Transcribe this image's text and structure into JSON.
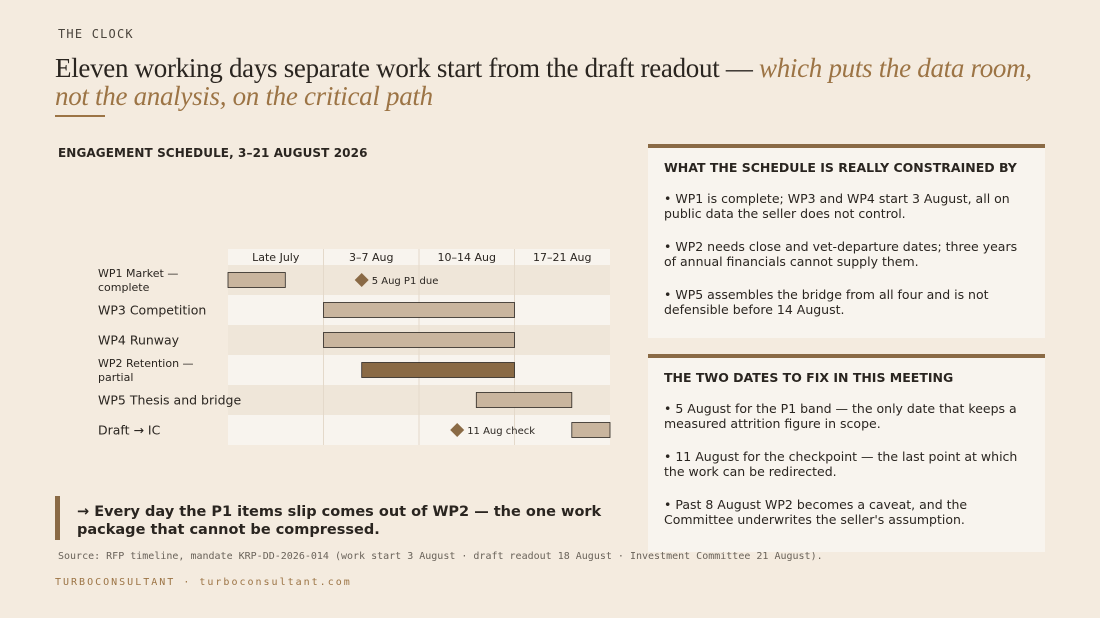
{
  "kicker": "THE CLOCK",
  "headline": {
    "main": "Eleven working days separate work start from the draft readout — ",
    "accent": "which puts the data room, not the analysis, on the critical path"
  },
  "chart_data": {
    "type": "gantt",
    "title": "ENGAGEMENT SCHEDULE, 3–21 AUGUST 2026",
    "columns": [
      "Late July",
      "3–7 Aug",
      "10–14 Aug",
      "17–21 Aug"
    ],
    "x_range": [
      0,
      4
    ],
    "rows": [
      {
        "label": [
          "WP1 Market —",
          "complete"
        ],
        "bar": {
          "start": 0.0,
          "end": 0.6,
          "style": "light"
        },
        "milestone": {
          "at": 1.4,
          "label": "5 Aug P1 due"
        }
      },
      {
        "label": [
          "WP3 Competition"
        ],
        "bar": {
          "start": 1.0,
          "end": 3.0,
          "style": "light"
        }
      },
      {
        "label": [
          "WP4 Runway"
        ],
        "bar": {
          "start": 1.0,
          "end": 3.0,
          "style": "light"
        }
      },
      {
        "label": [
          "WP2 Retention —",
          "partial"
        ],
        "bar": {
          "start": 1.4,
          "end": 3.0,
          "style": "dark"
        }
      },
      {
        "label": [
          "WP5 Thesis and bridge"
        ],
        "bar": {
          "start": 2.6,
          "end": 3.6,
          "style": "light"
        }
      },
      {
        "label": [
          "Draft → IC"
        ],
        "bar": {
          "start": 3.6,
          "end": 4.0,
          "style": "light"
        },
        "milestone": {
          "at": 2.4,
          "label": "11 Aug check"
        }
      }
    ]
  },
  "callout": "→ Every day the P1 items slip comes out of WP2 — the one work package that cannot be compressed.",
  "source": "Source: RFP timeline, mandate KRP-DD-2026-014 (work start 3 August · draft readout 18 August · Investment Committee 21 August).",
  "footer": "TURBOCONSULTANT · turboconsultant.com",
  "panel_constraints": {
    "title": "WHAT THE SCHEDULE IS REALLY CONSTRAINED BY",
    "items": [
      "WP1 is complete; WP3 and WP4 start 3 August, all on public data the seller does not control.",
      "WP2 needs close and vet-departure dates; three years of annual financials cannot supply them.",
      "WP5 assembles the bridge from all four and is not defensible before 14 August."
    ]
  },
  "panel_dates": {
    "title": "THE TWO DATES TO FIX IN THIS MEETING",
    "items": [
      "5 August for the P1 band — the only date that keeps a measured attrition figure in scope.",
      "11 August for the checkpoint — the last point at which the work can be redirected.",
      "Past 8 August WP2 becomes a caveat, and the Committee underwrites the seller's assumption."
    ]
  },
  "colors": {
    "background": "#f4ebdf",
    "accent": "#9c7445",
    "bar_light": "#c9b59e",
    "bar_dark": "#8a6a45",
    "milestone": "#8a6a45"
  }
}
